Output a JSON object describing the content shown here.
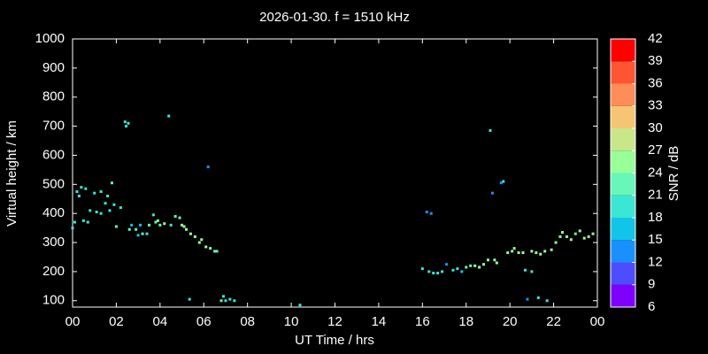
{
  "chart_data": {
    "type": "scatter",
    "title": "2026-01-30. f = 1510 kHz",
    "xlabel": "UT Time / hrs",
    "ylabel": "Virtual height / km",
    "xlim": [
      0,
      24
    ],
    "ylim": [
      78,
      1000
    ],
    "xticks": [
      {
        "value": 0,
        "label": "00"
      },
      {
        "value": 2,
        "label": "02"
      },
      {
        "value": 4,
        "label": "04"
      },
      {
        "value": 6,
        "label": "06"
      },
      {
        "value": 8,
        "label": "08"
      },
      10,
      12,
      14,
      16,
      18,
      20,
      22,
      {
        "value": 24,
        "label": "00"
      }
    ],
    "yticks": [
      100,
      200,
      300,
      400,
      500,
      600,
      700,
      800,
      900,
      1000
    ],
    "colorbar": {
      "label": "SNR / dB",
      "ticks": [
        6,
        9,
        12,
        15,
        18,
        21,
        24,
        27,
        30,
        33,
        36,
        39,
        42
      ],
      "colors": [
        "#8000ff",
        "#4d4dff",
        "#1a90ff",
        "#12c4e8",
        "#3ae6d4",
        "#66f7b9",
        "#99ff99",
        "#c9e68a",
        "#f5c574",
        "#ff8c59",
        "#ff5533",
        "#ff0000"
      ]
    },
    "x": [
      0.0,
      0.1,
      0.2,
      0.3,
      0.4,
      0.6,
      0.5,
      0.7,
      0.8,
      1.0,
      1.1,
      1.3,
      1.3,
      1.5,
      1.6,
      1.7,
      1.8,
      1.9,
      2.0,
      2.2,
      2.4,
      2.45,
      2.55,
      2.6,
      2.7,
      2.9,
      3.0,
      3.1,
      3.2,
      3.4,
      3.5,
      3.7,
      3.8,
      3.9,
      4.0,
      4.2,
      4.4,
      4.5,
      4.7,
      4.9,
      5.0,
      5.1,
      5.2,
      5.35,
      5.4,
      5.6,
      5.8,
      5.9,
      6.1,
      6.2,
      6.3,
      6.5,
      6.6,
      6.8,
      6.9,
      7.0,
      7.2,
      7.4,
      10.4,
      16.0,
      16.2,
      16.4,
      16.3,
      16.5,
      16.7,
      16.9,
      17.1,
      17.4,
      17.6,
      17.8,
      18.0,
      18.2,
      18.4,
      18.6,
      18.8,
      19.0,
      19.1,
      19.2,
      19.3,
      19.4,
      19.6,
      19.7,
      19.9,
      20.1,
      20.2,
      20.4,
      20.6,
      20.7,
      20.8,
      21.0,
      21.0,
      21.2,
      21.3,
      21.4,
      21.6,
      21.7,
      21.9,
      22.1,
      22.3,
      22.4,
      22.6,
      22.8,
      23.0,
      23.2,
      23.4,
      23.6,
      23.8
    ],
    "y": [
      350,
      370,
      475,
      460,
      490,
      485,
      375,
      370,
      410,
      470,
      405,
      400,
      475,
      435,
      460,
      410,
      505,
      430,
      355,
      420,
      715,
      700,
      710,
      345,
      360,
      345,
      325,
      360,
      330,
      330,
      360,
      395,
      370,
      375,
      360,
      365,
      735,
      360,
      390,
      385,
      360,
      355,
      345,
      105,
      330,
      320,
      300,
      310,
      285,
      560,
      280,
      270,
      270,
      100,
      115,
      100,
      105,
      100,
      85,
      210,
      405,
      400,
      200,
      195,
      195,
      200,
      225,
      205,
      210,
      200,
      215,
      220,
      220,
      215,
      225,
      240,
      685,
      470,
      240,
      230,
      505,
      510,
      265,
      270,
      280,
      265,
      265,
      205,
      105,
      270,
      200,
      265,
      110,
      260,
      270,
      100,
      275,
      300,
      320,
      335,
      320,
      310,
      330,
      340,
      315,
      320,
      330
    ],
    "snr": [
      18,
      18,
      18,
      18,
      18,
      18,
      18,
      18,
      18,
      18,
      18,
      18,
      18,
      18,
      18,
      18,
      21,
      18,
      21,
      18,
      18,
      18,
      18,
      21,
      15,
      21,
      15,
      15,
      21,
      18,
      21,
      18,
      21,
      24,
      21,
      24,
      18,
      18,
      21,
      21,
      24,
      24,
      24,
      18,
      24,
      24,
      24,
      24,
      24,
      12,
      24,
      21,
      21,
      21,
      18,
      18,
      18,
      18,
      18,
      18,
      12,
      12,
      18,
      18,
      18,
      18,
      12,
      18,
      18,
      15,
      21,
      21,
      24,
      24,
      24,
      24,
      18,
      12,
      24,
      24,
      12,
      18,
      24,
      24,
      24,
      24,
      24,
      18,
      12,
      24,
      18,
      24,
      18,
      24,
      24,
      18,
      24,
      24,
      24,
      24,
      24,
      24,
      21,
      24,
      24,
      24,
      24
    ]
  }
}
